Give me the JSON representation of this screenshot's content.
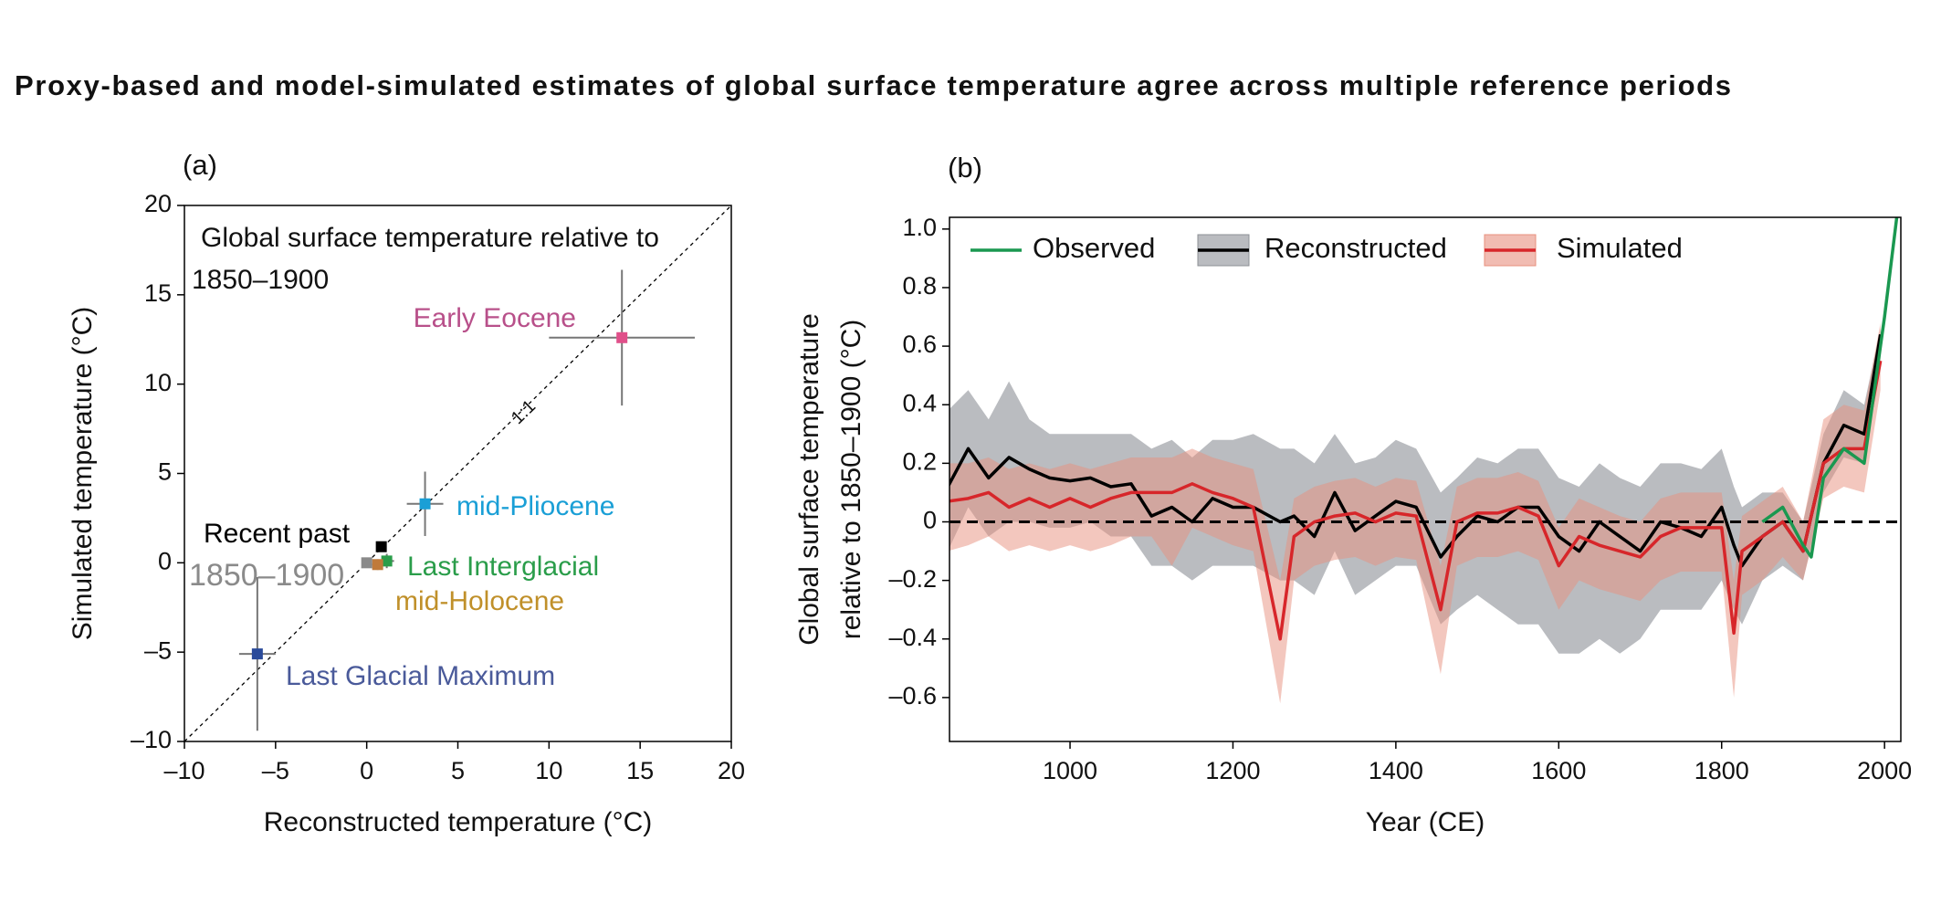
{
  "title": "Proxy-based and model-simulated estimates of global surface temperature agree across multiple reference periods",
  "chart_data": [
    {
      "type": "scatter",
      "label": "(a)",
      "annotation": [
        "Global surface temperature relative to",
        "1850–1900"
      ],
      "diagonal_label": "1:1",
      "xlabel": "Reconstructed temperature (°C)",
      "ylabel": "Simulated temperature (°C)",
      "xlim": [
        -10,
        20
      ],
      "ylim": [
        -10,
        20
      ],
      "xticks": [
        {
          "value": -10,
          "label": "–10"
        },
        {
          "value": -5,
          "label": "–5"
        },
        0,
        5,
        10,
        15,
        20
      ],
      "yticks": [
        {
          "value": -10,
          "label": "–10"
        },
        {
          "value": -5,
          "label": "–5"
        },
        0,
        5,
        10,
        15,
        20
      ],
      "series": [
        {
          "name": "Early Eocene",
          "color": "#e0508a",
          "label_color": "#b8508a",
          "x": [
            14
          ],
          "values": [
            12.6
          ],
          "xerr": [
            4
          ],
          "yerr": [
            3.8
          ]
        },
        {
          "name": "mid-Pliocene",
          "color": "#1a9fd6",
          "label_color": "#1a9fd6",
          "x": [
            3.2
          ],
          "values": [
            3.3
          ],
          "xerr": [
            1
          ],
          "yerr": [
            1.8
          ]
        },
        {
          "name": "Last Interglacial",
          "color": "#2a9d4a",
          "label_color": "#2a9d4a",
          "x": [
            1.1
          ],
          "values": [
            0.1
          ],
          "xerr": [
            0.4
          ],
          "yerr": [
            0.4
          ]
        },
        {
          "name": "mid-Holocene",
          "color": "#c07a3a",
          "label_color": "#c0902a",
          "x": [
            0.6
          ],
          "values": [
            -0.1
          ],
          "xerr": [
            0.3
          ],
          "yerr": [
            0.3
          ]
        },
        {
          "name": "Recent past",
          "color": "#000000",
          "label_color": "#000000",
          "x": [
            0.8
          ],
          "values": [
            0.9
          ],
          "xerr": [
            0.2
          ],
          "yerr": [
            0.2
          ]
        },
        {
          "name": "1850–1900",
          "color": "#8a8a8a",
          "label_color": "#8a8a8a",
          "x": [
            0
          ],
          "values": [
            0
          ],
          "xerr": [
            0.2
          ],
          "yerr": [
            0.2
          ]
        },
        {
          "name": "Last Glacial Maximum",
          "color": "#2a4a9a",
          "label_color": "#4a5a9a",
          "x": [
            -6
          ],
          "values": [
            -5.1
          ],
          "xerr": [
            1
          ],
          "yerr": [
            4.3
          ]
        }
      ]
    },
    {
      "type": "line",
      "label": "(b)",
      "xlabel": "Year (CE)",
      "ylabel": [
        "Global surface temperature",
        "relative to 1850–1900 (°C)"
      ],
      "xlim": [
        852,
        2020
      ],
      "ylim": [
        -0.75,
        1.04
      ],
      "xticks": [
        1000,
        1200,
        1400,
        1600,
        1800,
        2000
      ],
      "yticks": [
        {
          "value": -0.6,
          "label": "–0.6"
        },
        {
          "value": -0.4,
          "label": "–0.4"
        },
        {
          "value": -0.2,
          "label": "–0.2"
        },
        0,
        0.2,
        0.4,
        0.6,
        0.8,
        {
          "value": 1.0,
          "label": "1.0"
        }
      ],
      "series": [
        {
          "name": "Observed",
          "color": "#1a9850",
          "x": [
            1850,
            1875,
            1900,
            1910,
            1925,
            1950,
            1975,
            2000,
            2015
          ],
          "values": [
            0.0,
            0.05,
            -0.08,
            -0.12,
            0.15,
            0.25,
            0.2,
            0.7,
            1.04
          ]
        },
        {
          "name": "Reconstructed",
          "color": "#000000",
          "band_color": "#8c9096",
          "x": [
            850,
            875,
            900,
            925,
            950,
            975,
            1000,
            1025,
            1050,
            1075,
            1100,
            1125,
            1150,
            1175,
            1200,
            1225,
            1258,
            1275,
            1300,
            1325,
            1350,
            1375,
            1400,
            1425,
            1455,
            1475,
            1500,
            1525,
            1550,
            1575,
            1600,
            1625,
            1650,
            1675,
            1700,
            1725,
            1750,
            1775,
            1800,
            1815,
            1825,
            1850,
            1875,
            1900,
            1925,
            1950,
            1975,
            1995
          ],
          "values": [
            0.12,
            0.25,
            0.15,
            0.22,
            0.18,
            0.15,
            0.14,
            0.15,
            0.12,
            0.13,
            0.02,
            0.05,
            0.0,
            0.08,
            0.05,
            0.05,
            0.0,
            0.02,
            -0.05,
            0.1,
            -0.03,
            0.02,
            0.07,
            0.05,
            -0.12,
            -0.05,
            0.02,
            0.0,
            0.05,
            0.05,
            -0.05,
            -0.1,
            0.0,
            -0.05,
            -0.1,
            0.0,
            -0.02,
            -0.05,
            0.05,
            -0.08,
            -0.15,
            -0.05,
            0.0,
            -0.1,
            0.2,
            0.33,
            0.3,
            0.64
          ],
          "upper": [
            0.38,
            0.45,
            0.35,
            0.48,
            0.35,
            0.3,
            0.3,
            0.3,
            0.3,
            0.3,
            0.25,
            0.28,
            0.22,
            0.28,
            0.28,
            0.3,
            0.25,
            0.25,
            0.2,
            0.3,
            0.2,
            0.22,
            0.28,
            0.25,
            0.1,
            0.15,
            0.22,
            0.2,
            0.25,
            0.25,
            0.15,
            0.12,
            0.2,
            0.15,
            0.12,
            0.2,
            0.2,
            0.18,
            0.25,
            0.12,
            0.05,
            0.1,
            0.1,
            0.0,
            0.3,
            0.45,
            0.4,
            0.66
          ],
          "lower": [
            -0.1,
            0.05,
            -0.05,
            0.0,
            0.0,
            -0.02,
            -0.02,
            0.0,
            -0.05,
            -0.05,
            -0.15,
            -0.15,
            -0.2,
            -0.15,
            -0.15,
            -0.15,
            -0.2,
            -0.2,
            -0.25,
            -0.1,
            -0.25,
            -0.2,
            -0.15,
            -0.15,
            -0.35,
            -0.3,
            -0.25,
            -0.3,
            -0.35,
            -0.35,
            -0.45,
            -0.45,
            -0.4,
            -0.45,
            -0.4,
            -0.3,
            -0.3,
            -0.3,
            -0.2,
            -0.3,
            -0.35,
            -0.2,
            -0.15,
            -0.2,
            0.1,
            0.22,
            0.2,
            0.6
          ]
        },
        {
          "name": "Simulated",
          "color": "#d7262a",
          "band_color": "#e8907e",
          "x": [
            850,
            875,
            900,
            925,
            950,
            975,
            1000,
            1025,
            1050,
            1075,
            1100,
            1125,
            1150,
            1175,
            1200,
            1225,
            1258,
            1275,
            1300,
            1325,
            1350,
            1375,
            1400,
            1425,
            1455,
            1475,
            1500,
            1525,
            1550,
            1575,
            1600,
            1625,
            1650,
            1675,
            1700,
            1725,
            1750,
            1775,
            1800,
            1815,
            1825,
            1850,
            1875,
            1900,
            1925,
            1950,
            1975,
            1995
          ],
          "values": [
            0.07,
            0.08,
            0.1,
            0.05,
            0.08,
            0.05,
            0.08,
            0.05,
            0.08,
            0.1,
            0.1,
            0.1,
            0.13,
            0.1,
            0.08,
            0.05,
            -0.4,
            -0.05,
            0.0,
            0.02,
            0.03,
            0.0,
            0.03,
            0.02,
            -0.3,
            0.0,
            0.03,
            0.03,
            0.05,
            0.02,
            -0.15,
            -0.05,
            -0.08,
            -0.1,
            -0.12,
            -0.05,
            -0.02,
            -0.02,
            -0.02,
            -0.38,
            -0.1,
            -0.05,
            0.0,
            -0.1,
            0.2,
            0.25,
            0.25,
            0.55
          ],
          "upper": [
            0.2,
            0.2,
            0.22,
            0.18,
            0.2,
            0.18,
            0.2,
            0.18,
            0.2,
            0.22,
            0.22,
            0.22,
            0.25,
            0.22,
            0.2,
            0.18,
            -0.2,
            0.08,
            0.12,
            0.14,
            0.15,
            0.12,
            0.15,
            0.14,
            -0.15,
            0.12,
            0.15,
            0.15,
            0.17,
            0.14,
            -0.02,
            0.08,
            0.05,
            0.02,
            0.0,
            0.08,
            0.1,
            0.1,
            0.1,
            -0.2,
            0.02,
            0.07,
            0.12,
            0.0,
            0.35,
            0.4,
            0.38,
            0.68
          ],
          "lower": [
            -0.1,
            -0.08,
            -0.05,
            -0.1,
            -0.08,
            -0.1,
            -0.08,
            -0.1,
            -0.08,
            -0.05,
            -0.05,
            -0.15,
            -0.02,
            -0.05,
            -0.08,
            -0.1,
            -0.62,
            -0.2,
            -0.15,
            -0.13,
            -0.12,
            -0.15,
            -0.12,
            -0.13,
            -0.52,
            -0.15,
            -0.12,
            -0.12,
            -0.1,
            -0.13,
            -0.3,
            -0.2,
            -0.23,
            -0.25,
            -0.27,
            -0.2,
            -0.17,
            -0.17,
            -0.17,
            -0.6,
            -0.25,
            -0.2,
            -0.12,
            -0.2,
            0.08,
            0.12,
            0.1,
            0.45
          ]
        }
      ]
    }
  ]
}
